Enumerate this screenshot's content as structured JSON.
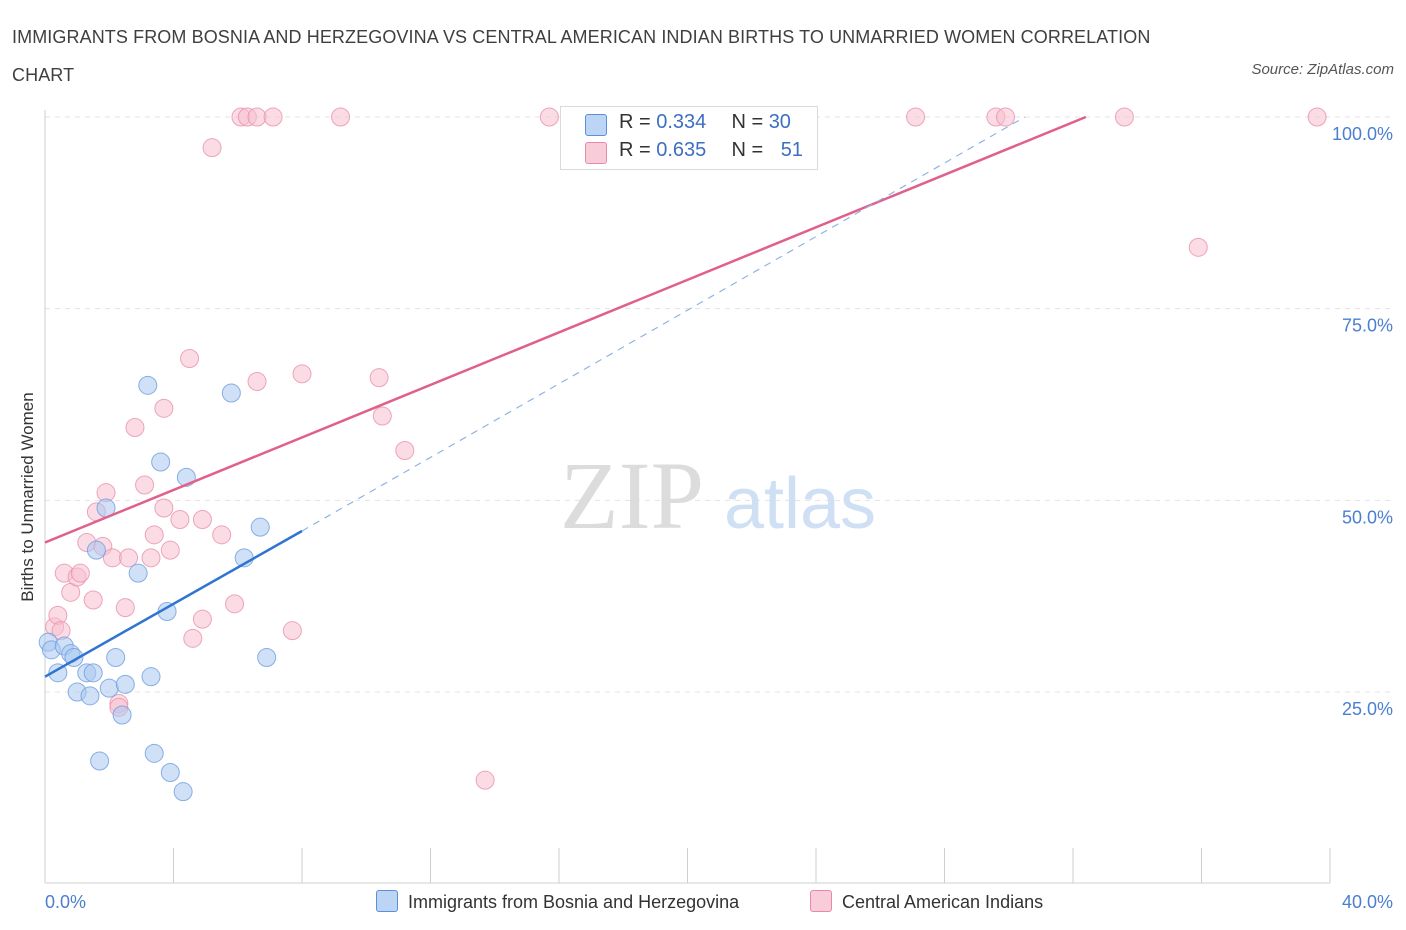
{
  "title": "IMMIGRANTS FROM BOSNIA AND HERZEGOVINA VS CENTRAL AMERICAN INDIAN BIRTHS TO UNMARRIED WOMEN CORRELATION CHART",
  "source": "Source: ZipAtlas.com",
  "watermark": {
    "zip": "ZIP",
    "atlas": "atlas"
  },
  "colors": {
    "blue_fill": "#a9c8f0",
    "blue_line": "#2f74d0",
    "pink_fill": "#f7bfd0",
    "pink_line": "#e0608a",
    "axis_text": "#4a7fd0"
  },
  "legend": {
    "blue": {
      "r_label": "R =",
      "r_value": "0.334",
      "n_label": "N =",
      "n_value": "30"
    },
    "pink": {
      "r_label": "R =",
      "r_value": "0.635",
      "n_label": "N =",
      "n_value": "51"
    }
  },
  "chart_data": {
    "type": "scatter",
    "title": "IMMIGRANTS FROM BOSNIA AND HERZEGOVINA VS CENTRAL AMERICAN INDIAN BIRTHS TO UNMARRIED WOMEN CORRELATION CHART",
    "xlabel": "",
    "ylabel": "Births to Unmarried Women",
    "xlim": [
      0,
      40
    ],
    "ylim": [
      0,
      100
    ],
    "x_tick_labels": [
      {
        "value": 0,
        "label": "0.0%"
      },
      {
        "value": 40,
        "label": "40.0%"
      }
    ],
    "y_tick_labels": [
      {
        "value": 25,
        "label": "25.0%"
      },
      {
        "value": 50,
        "label": "50.0%"
      },
      {
        "value": 75,
        "label": "75.0%"
      },
      {
        "value": 100,
        "label": "100.0%"
      }
    ],
    "grid": true,
    "series": [
      {
        "name": "Immigrants from Bosnia and Herzegovina",
        "color": "#a9c8f0",
        "points": [
          [
            0.1,
            31.5
          ],
          [
            0.2,
            30.5
          ],
          [
            0.4,
            27.5
          ],
          [
            0.6,
            31.0
          ],
          [
            0.8,
            30.0
          ],
          [
            0.9,
            29.5
          ],
          [
            1.0,
            25.0
          ],
          [
            1.3,
            27.5
          ],
          [
            1.4,
            24.5
          ],
          [
            1.5,
            27.5
          ],
          [
            1.7,
            16.0
          ],
          [
            1.6,
            43.5
          ],
          [
            1.9,
            49.0
          ],
          [
            2.0,
            25.5
          ],
          [
            2.2,
            29.5
          ],
          [
            2.4,
            22.0
          ],
          [
            2.5,
            26.0
          ],
          [
            2.9,
            40.5
          ],
          [
            3.2,
            65.0
          ],
          [
            3.3,
            27.0
          ],
          [
            3.4,
            17.0
          ],
          [
            3.6,
            55.0
          ],
          [
            3.8,
            35.5
          ],
          [
            3.9,
            14.5
          ],
          [
            4.3,
            12.0
          ],
          [
            4.4,
            53.0
          ],
          [
            5.8,
            64.0
          ],
          [
            6.2,
            42.5
          ],
          [
            6.7,
            46.5
          ],
          [
            6.9,
            29.5
          ]
        ],
        "trend": {
          "x": [
            0,
            8
          ],
          "y": [
            27,
            46
          ]
        },
        "trend_extension": {
          "x": [
            8,
            30.5
          ],
          "y": [
            46,
            100
          ]
        }
      },
      {
        "name": "Central American Indians",
        "color": "#f7bfd0",
        "points": [
          [
            0.3,
            33.5
          ],
          [
            0.4,
            35.0
          ],
          [
            0.5,
            33.0
          ],
          [
            0.6,
            40.5
          ],
          [
            0.8,
            38.0
          ],
          [
            1.0,
            40.0
          ],
          [
            1.1,
            40.5
          ],
          [
            1.3,
            44.5
          ],
          [
            1.5,
            37.0
          ],
          [
            1.6,
            48.5
          ],
          [
            1.8,
            44.0
          ],
          [
            1.9,
            51.0
          ],
          [
            2.1,
            42.5
          ],
          [
            2.3,
            23.5
          ],
          [
            2.5,
            36.0
          ],
          [
            2.6,
            42.5
          ],
          [
            2.8,
            59.5
          ],
          [
            3.1,
            52.0
          ],
          [
            3.3,
            42.5
          ],
          [
            3.4,
            45.5
          ],
          [
            3.7,
            49.0
          ],
          [
            3.7,
            62.0
          ],
          [
            3.9,
            43.5
          ],
          [
            4.2,
            47.5
          ],
          [
            4.5,
            68.5
          ],
          [
            4.6,
            32.0
          ],
          [
            4.9,
            47.5
          ],
          [
            4.9,
            34.5
          ],
          [
            5.2,
            96.0
          ],
          [
            5.5,
            45.5
          ],
          [
            5.9,
            36.5
          ],
          [
            6.1,
            100.0
          ],
          [
            6.3,
            100.0
          ],
          [
            6.6,
            100.0
          ],
          [
            6.6,
            65.5
          ],
          [
            7.1,
            100.0
          ],
          [
            7.7,
            33.0
          ],
          [
            8.0,
            66.5
          ],
          [
            9.2,
            100.0
          ],
          [
            10.4,
            66.0
          ],
          [
            10.5,
            61.0
          ],
          [
            11.2,
            56.5
          ],
          [
            13.7,
            13.5
          ],
          [
            15.7,
            100.0
          ],
          [
            27.1,
            100.0
          ],
          [
            29.6,
            100.0
          ],
          [
            29.9,
            100.0
          ],
          [
            33.6,
            100.0
          ],
          [
            35.9,
            83.0
          ],
          [
            39.6,
            100.0
          ],
          [
            2.3,
            23.0
          ]
        ],
        "trend": {
          "x": [
            0,
            32.4
          ],
          "y": [
            44.5,
            100
          ]
        }
      }
    ]
  }
}
